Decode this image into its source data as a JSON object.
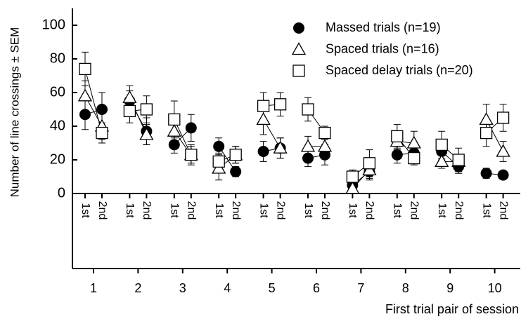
{
  "chart_data": {
    "type": "scatter",
    "ylabel": "Number of line crossings ± SEM",
    "xlabel": "First trial pair of session",
    "groups": [
      1,
      2,
      3,
      4,
      5,
      6,
      7,
      8,
      9,
      10
    ],
    "categories": [
      "1st",
      "2nd",
      "1st",
      "2nd",
      "1st",
      "2nd",
      "1st",
      "2nd",
      "1st",
      "2nd",
      "1st",
      "2nd",
      "1st",
      "2nd",
      "1st",
      "2nd",
      "1st",
      "2nd",
      "1st",
      "2nd"
    ],
    "ylim": [
      0,
      106
    ],
    "yticks": [
      0,
      20,
      40,
      60,
      80,
      100
    ],
    "legend": "upper right",
    "series": [
      {
        "name": "Massed trials (n=19)",
        "marker": "circle",
        "color": "#000000",
        "values": [
          47,
          50,
          55,
          37,
          29,
          39,
          28,
          13,
          25,
          27,
          21,
          23,
          5,
          13,
          23,
          24,
          25,
          16,
          12,
          11
        ],
        "errors": [
          9,
          10,
          6,
          8,
          5,
          8,
          5,
          3,
          6,
          6,
          5,
          6,
          3,
          5,
          5,
          6,
          5,
          4,
          3,
          2
        ]
      },
      {
        "name": "Spaced trials (n=16)",
        "marker": "triangle",
        "color": "#000000",
        "values": [
          58,
          40,
          57,
          35,
          37,
          23,
          15,
          23,
          44,
          27,
          28,
          28,
          3,
          14,
          31,
          30,
          19,
          19,
          44,
          25
        ],
        "errors": [
          9,
          8,
          7,
          6,
          7,
          5,
          7,
          5,
          9,
          6,
          6,
          5,
          3,
          5,
          5,
          7,
          4,
          4,
          9,
          6
        ]
      },
      {
        "name": "Spaced delay trials (n=20)",
        "marker": "square",
        "color": "#000000",
        "values": [
          74,
          36,
          49,
          50,
          44,
          23,
          19,
          23,
          52,
          53,
          50,
          36,
          10,
          18,
          34,
          21,
          29,
          20,
          36,
          45
        ],
        "errors": [
          10,
          6,
          7,
          8,
          11,
          6,
          5,
          5,
          8,
          7,
          7,
          4,
          4,
          8,
          7,
          4,
          8,
          7,
          8,
          8
        ]
      }
    ]
  }
}
